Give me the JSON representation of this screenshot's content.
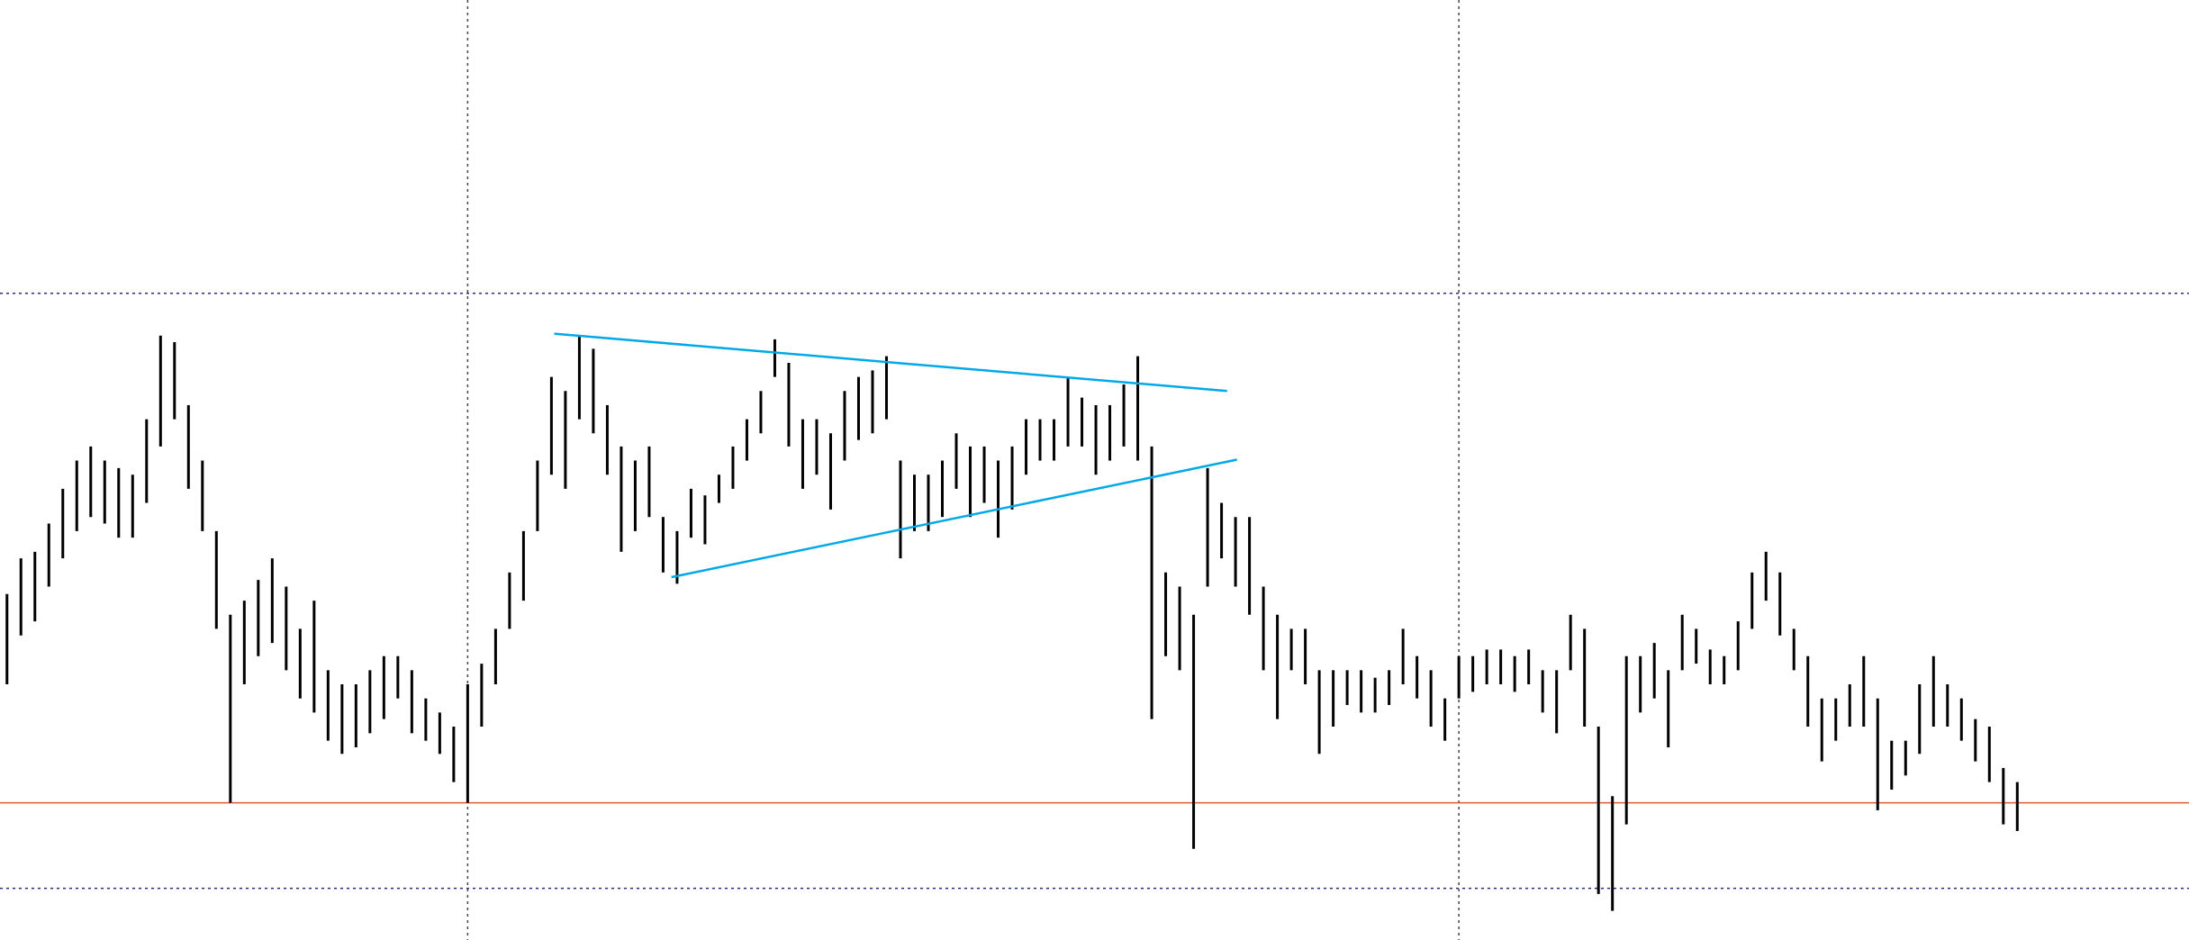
{
  "chart_data": {
    "type": "range-bar",
    "x": [
      0.5,
      1.5,
      2.5,
      3.5,
      4.5,
      5.5,
      6.5,
      7.5,
      8.5,
      9.5,
      10.5,
      11.5,
      12.5,
      13.5,
      14.5,
      15.5,
      16.5,
      17.5,
      18.5,
      19.5,
      20.5,
      21.5,
      22.5,
      23.5,
      24.5,
      25.5,
      26.5,
      27.5,
      28.5,
      29.5,
      30.5,
      31.5,
      32.5,
      33.5,
      34.5,
      35.5,
      36.5,
      37.5,
      38.5,
      39.5,
      40.5,
      41.5,
      42.5,
      43.5,
      44.5,
      45.5,
      46.5,
      47.5,
      48.5,
      49.5,
      50.5,
      51.5,
      52.5,
      53.5,
      54.5,
      55.5,
      56.5,
      57.5,
      58.5,
      59.5,
      60.5,
      61.5,
      62.5,
      63.5,
      64.5,
      65.5,
      66.5,
      67.5,
      68.5,
      69.5,
      70.5,
      71.5,
      72.5,
      73.5,
      74.5,
      75.5,
      76.5,
      77.5,
      78.5,
      79.5,
      80.5,
      81.5,
      82.5,
      83.5,
      84.5,
      85.5,
      86.5,
      87.5,
      88.5,
      89.5,
      90.5,
      91.5,
      92.5,
      93.5,
      94.5,
      95.5,
      96.5,
      97.5,
      98.5,
      99.5,
      100.5,
      101.5,
      102.5,
      103.5,
      104.5,
      105.5,
      106.5,
      107.5,
      108.5,
      109.5,
      110.5,
      111.5,
      112.5,
      113.5,
      114.5,
      115.5,
      116.5,
      117.5,
      118.5,
      119.5,
      120.5,
      121.5,
      122.5,
      123.5,
      124.5,
      125.5,
      126.5,
      127.5,
      128.5,
      129.5,
      130.5,
      131.5,
      132.5,
      133.5,
      134.5,
      135.5,
      136.5,
      137.5,
      138.5,
      139.5,
      140.5,
      141.5,
      142.5,
      143.5,
      144.5
    ],
    "high": [
      36.8,
      40.6,
      41.3,
      44.3,
      48.0,
      51.0,
      52.5,
      51.0,
      50.2,
      49.5,
      55.4,
      64.3,
      63.6,
      56.9,
      51.0,
      43.5,
      34.6,
      36.1,
      38.3,
      40.6,
      37.6,
      33.1,
      36.1,
      28.7,
      27.2,
      27.2,
      28.7,
      30.2,
      30.2,
      28.7,
      25.7,
      24.2,
      22.7,
      27.2,
      29.4,
      33.1,
      39.1,
      43.5,
      51.0,
      59.9,
      58.4,
      64.3,
      62.9,
      56.9,
      52.5,
      51.0,
      52.5,
      45.0,
      43.5,
      48.0,
      47.3,
      49.5,
      52.5,
      55.4,
      58.4,
      63.9,
      61.4,
      55.4,
      55.4,
      53.9,
      58.4,
      59.9,
      60.6,
      62.1,
      51.0,
      49.5,
      49.5,
      51.0,
      53.9,
      52.5,
      52.5,
      51.0,
      52.5,
      55.4,
      55.4,
      55.4,
      59.9,
      57.7,
      56.9,
      56.9,
      59.1,
      62.1,
      52.5,
      39.1,
      37.6,
      34.6,
      50.2,
      46.5,
      45.0,
      45.0,
      37.6,
      34.6,
      33.1,
      33.1,
      28.7,
      28.7,
      28.7,
      28.7,
      27.9,
      28.7,
      33.1,
      30.2,
      28.7,
      25.7,
      30.2,
      30.2,
      30.9,
      30.9,
      30.2,
      30.9,
      28.7,
      28.7,
      34.6,
      33.1,
      22.7,
      15.3,
      30.2,
      30.2,
      31.6,
      28.7,
      34.6,
      33.1,
      30.9,
      30.2,
      33.9,
      39.1,
      41.3,
      39.1,
      33.1,
      30.2,
      25.7,
      25.7,
      27.2,
      30.2,
      25.7,
      21.2,
      21.2,
      27.2,
      30.2,
      27.2,
      25.7,
      23.5,
      22.7,
      18.3,
      16.8
    ],
    "low": [
      27.2,
      32.4,
      33.9,
      37.6,
      40.6,
      43.5,
      45.0,
      44.3,
      42.8,
      42.8,
      46.5,
      52.5,
      55.4,
      48.0,
      43.5,
      33.1,
      14.6,
      27.2,
      30.2,
      31.6,
      28.7,
      25.7,
      24.2,
      21.2,
      19.8,
      20.5,
      22.0,
      23.5,
      25.7,
      22.0,
      21.2,
      19.8,
      16.8,
      14.6,
      22.7,
      27.2,
      33.1,
      36.1,
      43.5,
      49.5,
      48.0,
      55.4,
      53.9,
      49.5,
      41.3,
      43.5,
      45.0,
      39.1,
      37.9,
      42.8,
      42.1,
      46.5,
      48.0,
      51.0,
      53.9,
      59.9,
      52.5,
      48.0,
      49.5,
      45.8,
      51.0,
      53.2,
      53.9,
      55.4,
      40.6,
      43.5,
      43.5,
      45.0,
      48.0,
      45.0,
      46.5,
      42.8,
      45.8,
      49.5,
      51.0,
      51.0,
      52.5,
      52.5,
      49.5,
      51.0,
      52.5,
      51.0,
      23.5,
      30.2,
      28.7,
      9.7,
      37.6,
      40.6,
      37.6,
      34.6,
      28.7,
      23.5,
      28.7,
      27.2,
      19.8,
      22.7,
      25.0,
      24.2,
      24.2,
      25.0,
      27.2,
      25.7,
      22.7,
      21.2,
      25.7,
      26.4,
      27.2,
      27.2,
      26.4,
      27.2,
      24.2,
      22.0,
      28.7,
      22.7,
      4.9,
      3.1,
      12.3,
      24.2,
      25.7,
      20.5,
      28.7,
      29.4,
      27.2,
      27.2,
      28.7,
      33.1,
      36.1,
      32.4,
      28.7,
      22.7,
      19.0,
      21.2,
      22.7,
      22.7,
      13.8,
      16.0,
      17.5,
      19.8,
      22.7,
      22.7,
      21.2,
      19.0,
      16.8,
      12.3,
      11.6
    ],
    "color": "#000000",
    "xlim": [
      0,
      156.8
    ],
    "ylim": [
      0,
      100
    ],
    "xticks": [
      33.5,
      104.5
    ],
    "yticks": [
      5.5,
      68.8
    ],
    "grid": true,
    "hline": {
      "value": 14.6,
      "color": "#e0583c"
    },
    "trendlines": [
      {
        "x": [
          39.7,
          87.9
        ],
        "y": [
          64.5,
          58.4
        ],
        "color": "#00a8e8"
      },
      {
        "x": [
          48.1,
          88.6
        ],
        "y": [
          38.6,
          51.1
        ],
        "color": "#00a8e8"
      }
    ]
  }
}
